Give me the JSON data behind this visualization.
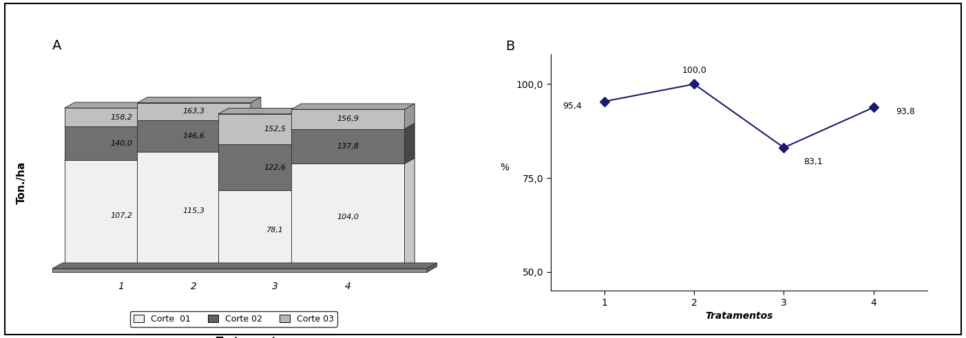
{
  "bar_chart": {
    "treatments": [
      1,
      2,
      3,
      4
    ],
    "corte01": [
      107.2,
      115.3,
      78.1,
      104.0
    ],
    "corte02": [
      140.0,
      146.6,
      122.6,
      137.8
    ],
    "corte03": [
      158.2,
      163.3,
      152.5,
      156.9
    ],
    "colors": {
      "corte01_front": "#f0f0f0",
      "corte01_top": "#d8d8d8",
      "corte01_side": "#c8c8c8",
      "corte02_front": "#707070",
      "corte02_top": "#585858",
      "corte02_side": "#484848",
      "corte03_front": "#c0c0c0",
      "corte03_top": "#a8a8a8",
      "corte03_side": "#989898"
    },
    "ylabel": "Ton./ha",
    "xlabel": "Tratamentos",
    "label_a": "A"
  },
  "line_chart": {
    "treatments": [
      1,
      2,
      3,
      4
    ],
    "values": [
      95.4,
      100.0,
      83.1,
      93.8
    ],
    "ylabel": "%",
    "xlabel": "Tratamentos",
    "label_b": "B",
    "yticks": [
      50.0,
      75.0,
      100.0
    ],
    "ylim": [
      45,
      108
    ],
    "line_color": "#1a1a6e",
    "marker_color": "#1a1a6e"
  },
  "legend": {
    "corte01": "Corte  01",
    "corte02": "Corte 02",
    "corte03": "Corte 03",
    "col01": "#f0f0f0",
    "col02": "#606060",
    "col03": "#b8b8b8"
  },
  "bg_color": "#ffffff"
}
